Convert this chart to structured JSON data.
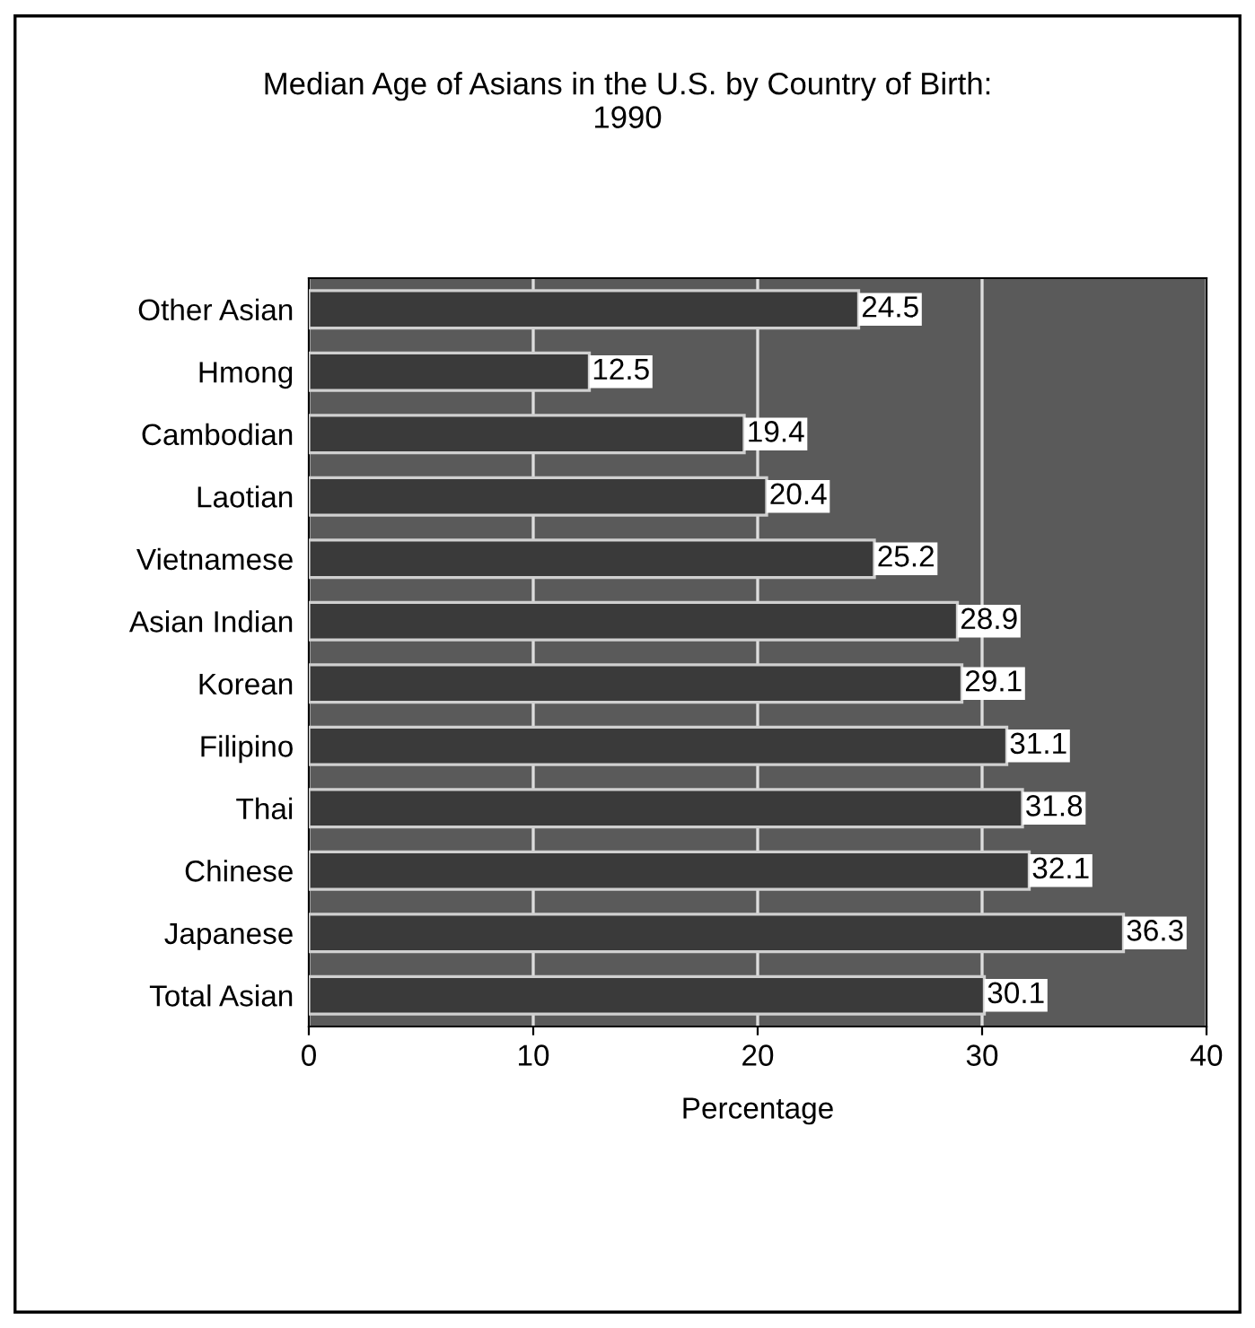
{
  "chart_data": {
    "type": "bar",
    "orientation": "horizontal",
    "title": "Median Age of Asians in the U.S. by Country of Birth:\n1990",
    "xlabel": "Percentage",
    "categories": [
      "Other Asian",
      "Hmong",
      "Cambodian",
      "Laotian",
      "Vietnamese",
      "Asian Indian",
      "Korean",
      "Filipino",
      "Thai",
      "Chinese",
      "Japanese",
      "Total Asian"
    ],
    "values": [
      24.5,
      12.5,
      19.4,
      20.4,
      25.2,
      28.9,
      29.1,
      31.1,
      31.8,
      32.1,
      36.3,
      30.1
    ],
    "color": "#3a3a3a",
    "xlim": [
      0,
      40
    ],
    "xticks": [
      0,
      10,
      20,
      30,
      40
    ],
    "grid": "x",
    "data_labels": true
  }
}
